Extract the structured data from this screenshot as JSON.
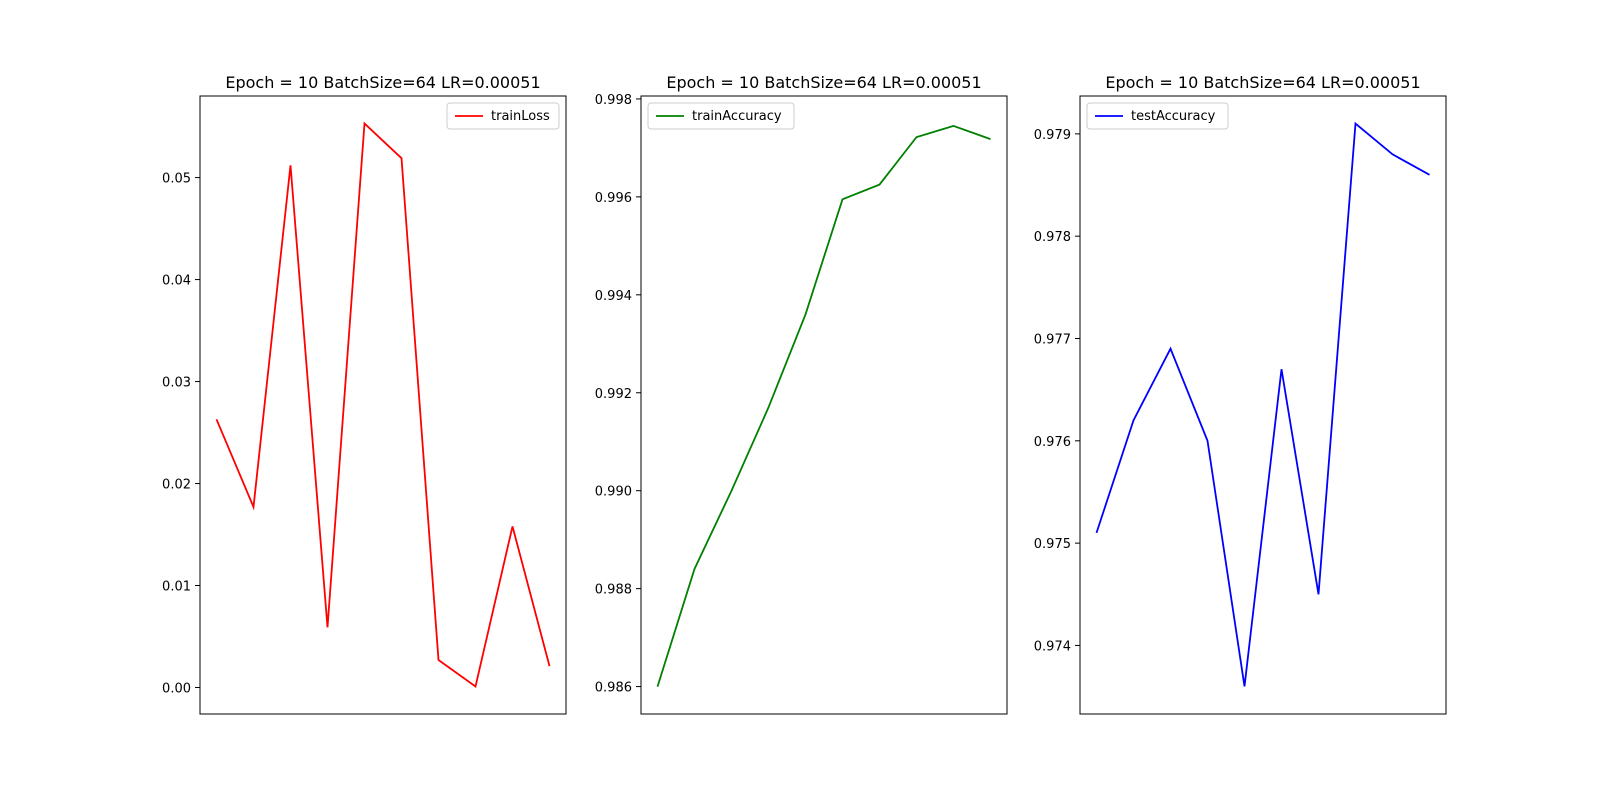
{
  "chart_data": [
    {
      "type": "line",
      "title": "Epoch = 10 BatchSize=64 LR=0.00051",
      "xlabel": "",
      "ylabel": "",
      "x_ticks_shown": false,
      "grid": false,
      "legend_position": "top-right",
      "series": [
        {
          "name": "trainLoss",
          "color": "#ff0000",
          "x": [
            0,
            1,
            2,
            3,
            4,
            5,
            6,
            7,
            8,
            9
          ],
          "values": [
            0.0263,
            0.0177,
            0.0512,
            0.0059,
            0.0553,
            0.0519,
            0.0027,
            0.0001,
            0.0158,
            0.0021
          ]
        }
      ],
      "ylim": [
        -0.0026,
        0.058
      ],
      "yticks": [
        0.0,
        0.01,
        0.02,
        0.03,
        0.04,
        0.05
      ],
      "ytick_labels": [
        "0.00",
        "0.01",
        "0.02",
        "0.03",
        "0.04",
        "0.05"
      ]
    },
    {
      "type": "line",
      "title": "Epoch = 10 BatchSize=64 LR=0.00051",
      "xlabel": "",
      "ylabel": "",
      "x_ticks_shown": false,
      "grid": false,
      "legend_position": "top-left",
      "series": [
        {
          "name": "trainAccuracy",
          "color": "#008000",
          "x": [
            0,
            1,
            2,
            3,
            4,
            5,
            6,
            7,
            8,
            9
          ],
          "values": [
            0.986,
            0.9884,
            0.99,
            0.9917,
            0.9936,
            0.99595,
            0.99625,
            0.99722,
            0.99745,
            0.99718
          ]
        }
      ],
      "ylim": [
        0.98544,
        0.99806
      ],
      "yticks": [
        0.986,
        0.988,
        0.99,
        0.992,
        0.994,
        0.996,
        0.998
      ],
      "ytick_labels": [
        "0.986",
        "0.988",
        "0.990",
        "0.992",
        "0.994",
        "0.996",
        "0.998"
      ]
    },
    {
      "type": "line",
      "title": "Epoch = 10 BatchSize=64 LR=0.00051",
      "xlabel": "",
      "ylabel": "",
      "x_ticks_shown": false,
      "grid": false,
      "legend_position": "top-left",
      "series": [
        {
          "name": "testAccuracy",
          "color": "#0000ff",
          "x": [
            0,
            1,
            2,
            3,
            4,
            5,
            6,
            7,
            8,
            9
          ],
          "values": [
            0.9751,
            0.9762,
            0.9769,
            0.976,
            0.9736,
            0.9767,
            0.9745,
            0.9791,
            0.9788,
            0.9786
          ]
        }
      ],
      "ylim": [
        0.97333,
        0.97937
      ],
      "yticks": [
        0.974,
        0.975,
        0.976,
        0.977,
        0.978,
        0.979
      ],
      "ytick_labels": [
        "0.974",
        "0.975",
        "0.976",
        "0.977",
        "0.978",
        "0.979"
      ]
    }
  ]
}
